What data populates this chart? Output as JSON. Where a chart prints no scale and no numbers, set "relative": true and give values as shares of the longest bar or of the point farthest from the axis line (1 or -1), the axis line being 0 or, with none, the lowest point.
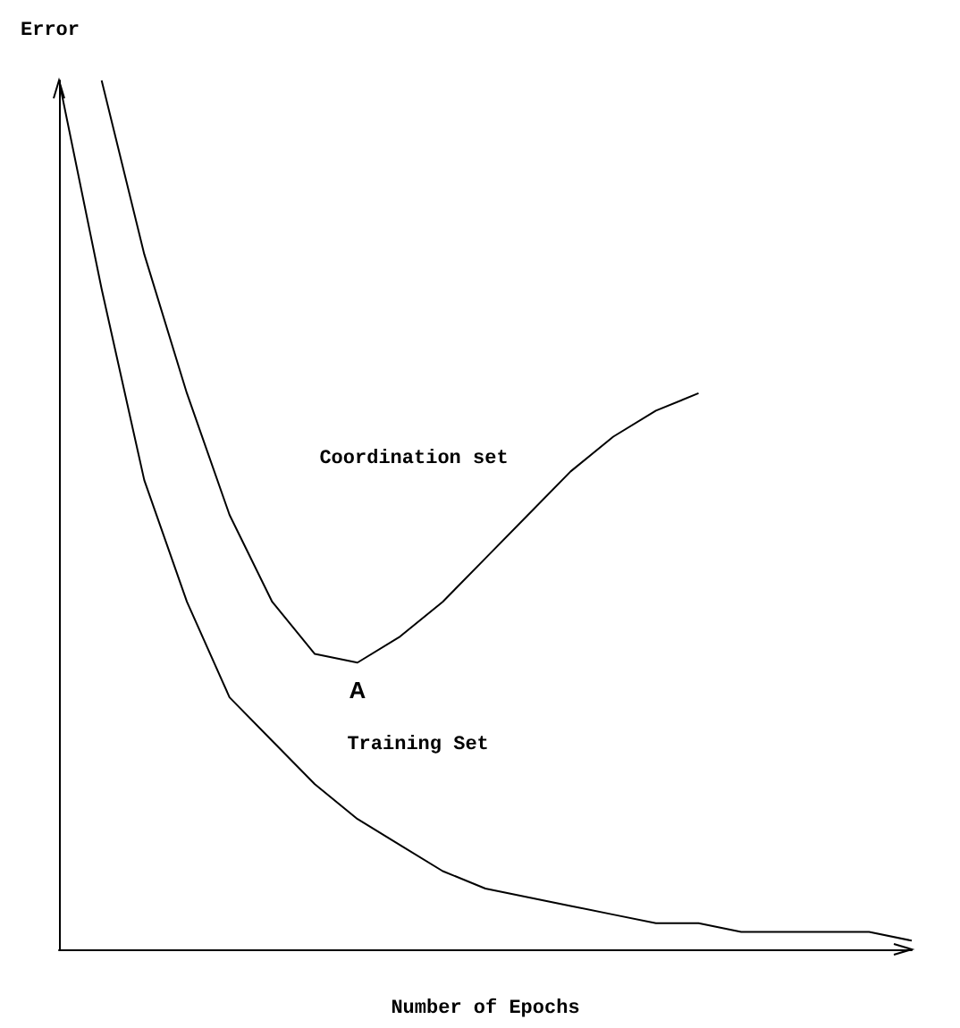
{
  "chart_data": {
    "type": "line",
    "relative": true,
    "xlabel": "Number of Epochs",
    "ylabel": "Error",
    "categories": [
      null,
      null,
      null,
      null,
      null,
      null,
      null,
      null,
      null,
      null,
      null,
      null,
      null,
      null,
      null,
      null,
      null,
      null,
      null,
      null,
      null
    ],
    "series": [
      {
        "name": "Coordination set",
        "color": "#000000",
        "values": [
          null,
          1,
          0.8,
          0.64,
          0.5,
          0.4,
          0.34,
          0.33,
          0.36,
          0.4,
          0.45,
          0.5,
          0.55,
          0.59,
          0.62,
          0.64,
          null,
          null,
          null,
          null,
          null
        ]
      },
      {
        "name": "Training Set",
        "color": "#000000",
        "values": [
          1,
          0.76,
          0.54,
          0.4,
          0.29,
          0.24,
          0.19,
          0.15,
          0.12,
          0.09,
          0.07,
          0.06,
          0.05,
          0.04,
          0.03,
          0.03,
          0.02,
          0.02,
          0.02,
          0.02,
          0.01
        ]
      }
    ],
    "annotations": [
      "A"
    ],
    "grid": false,
    "legend": false,
    "marker": "none"
  }
}
